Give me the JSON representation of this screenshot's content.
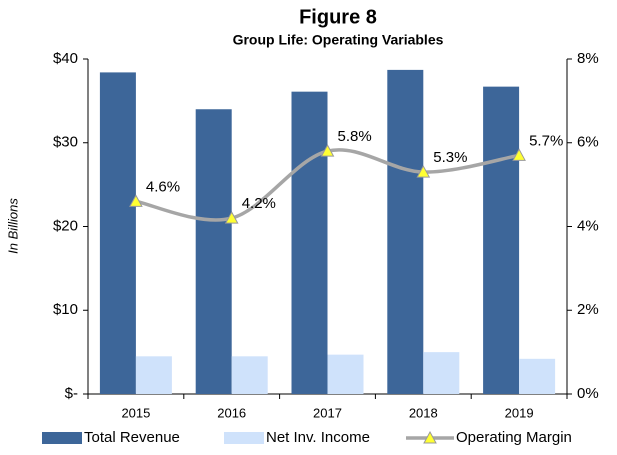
{
  "chart_data": {
    "type": "bar",
    "title": "Figure 8",
    "subtitle": "Group Life: Operating Variables",
    "y_label": "In Billions",
    "categories": [
      "2015",
      "2016",
      "2017",
      "2018",
      "2019"
    ],
    "series": [
      {
        "name": "Total Revenue",
        "color": "#3d6699",
        "values": [
          38.4,
          34.0,
          36.1,
          38.7,
          36.7
        ]
      },
      {
        "name": "Net Inv. Income",
        "color": "#cfe2fb",
        "values": [
          4.5,
          4.5,
          4.7,
          5.0,
          4.2
        ]
      },
      {
        "name": "Operating Margin",
        "type": "line",
        "axis": "y2",
        "color": "#a6a6a6",
        "marker_color": "#ffff33",
        "values": [
          4.6,
          4.2,
          5.8,
          5.3,
          5.7
        ],
        "value_labels": [
          "4.6%",
          "4.2%",
          "5.8%",
          "5.3%",
          "5.7%"
        ]
      }
    ],
    "ylim": [
      0,
      40
    ],
    "yticks": [
      {
        "value": 0,
        "label": "$-"
      },
      {
        "value": 10,
        "label": "$10"
      },
      {
        "value": 20,
        "label": "$20"
      },
      {
        "value": 30,
        "label": "$30"
      },
      {
        "value": 40,
        "label": "$40"
      }
    ],
    "y2lim": [
      0,
      8
    ],
    "y2ticks": [
      {
        "value": 0,
        "label": "0%"
      },
      {
        "value": 2,
        "label": "2%"
      },
      {
        "value": 4,
        "label": "4%"
      },
      {
        "value": 6,
        "label": "6%"
      },
      {
        "value": 8,
        "label": "8%"
      }
    ],
    "legend": "bottom"
  }
}
